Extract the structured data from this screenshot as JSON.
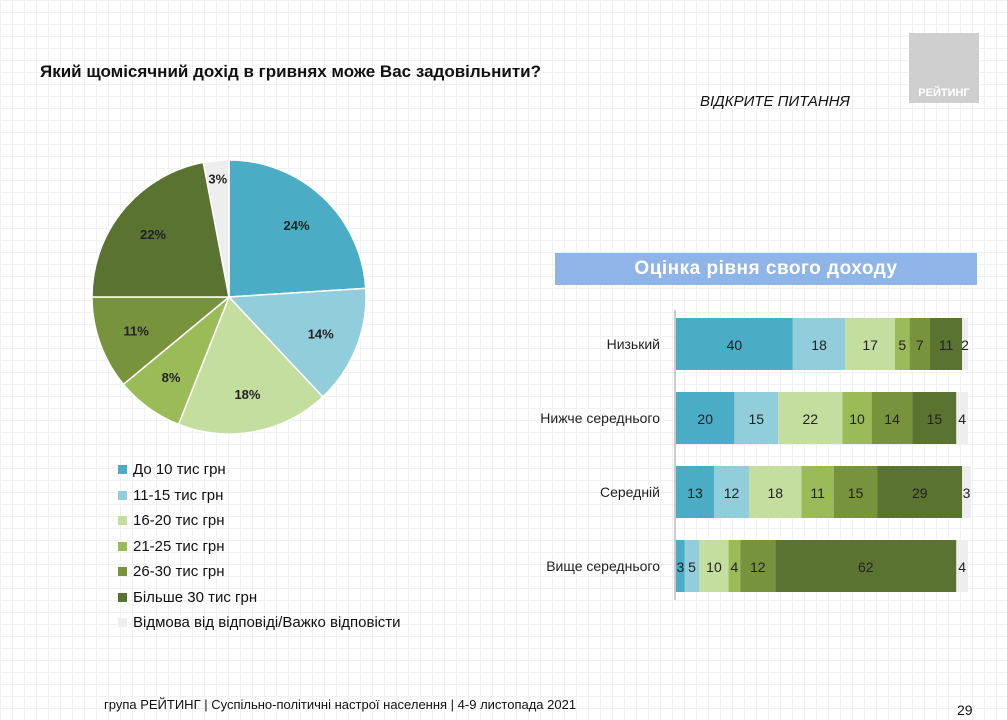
{
  "header": {
    "title": "Який щомісячний дохід в гривнях може Вас задовільнити?",
    "subtitle": "ВІДКРИТЕ ПИТАННЯ",
    "logo": "РЕЙТИНГ"
  },
  "footer": {
    "text": "група РЕЙТИНГ | Суспільно-політичні настрої населення  | 4-9 листопада 2021",
    "page": "29"
  },
  "chart_data": [
    {
      "type": "pie",
      "unit": "%",
      "legend_position": "bottom",
      "categories": [
        "До 10 тис грн",
        "11-15 тис грн",
        "16-20 тис грн",
        "21-25 тис грн",
        "26-30 тис грн",
        "Більше 30 тис грн",
        "Відмова від відповіді/Важко відповісти"
      ],
      "values": [
        24,
        14,
        18,
        8,
        11,
        22,
        3
      ],
      "colors": [
        "#4bacc6",
        "#92cddc",
        "#c4dea0",
        "#9bbb59",
        "#77933c",
        "#5a7330",
        "#eeeeee"
      ]
    },
    {
      "type": "bar",
      "orientation": "horizontal",
      "stacked": true,
      "title": "Оцінка рівня свого доходу",
      "categories": [
        "Низький",
        "Нижче середнього",
        "Середній",
        "Вище середнього"
      ],
      "series": [
        {
          "values": [
            40,
            20,
            13,
            3
          ]
        },
        {
          "values": [
            18,
            15,
            12,
            5
          ]
        },
        {
          "values": [
            17,
            22,
            18,
            10
          ]
        },
        {
          "values": [
            5,
            10,
            11,
            4
          ]
        },
        {
          "values": [
            7,
            14,
            15,
            12
          ]
        },
        {
          "values": [
            11,
            15,
            29,
            62
          ]
        },
        {
          "values": [
            2,
            4,
            3,
            4
          ]
        }
      ]
    }
  ]
}
